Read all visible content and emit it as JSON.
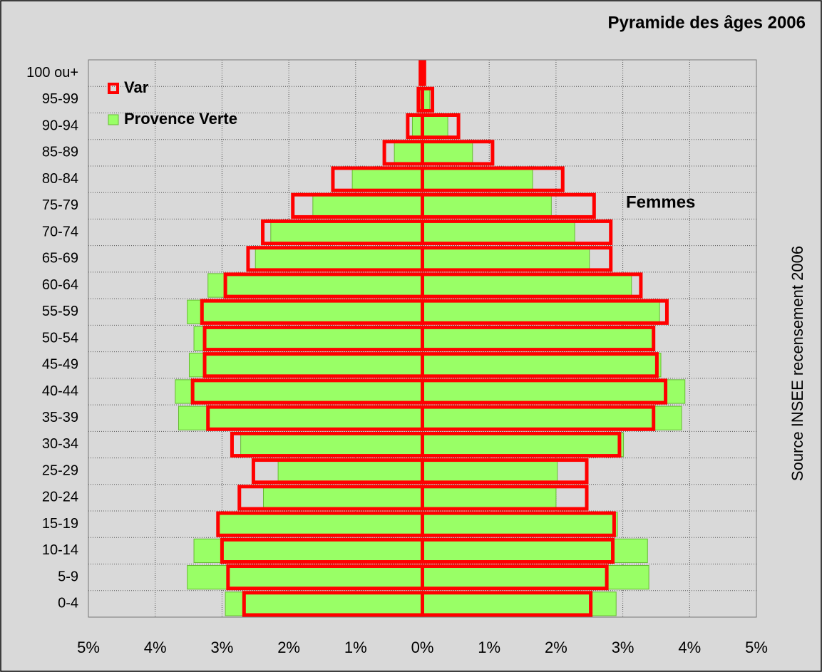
{
  "chart_data": {
    "type": "pyramid",
    "title": "Pyramide des âges 2006",
    "source": "Source INSEE recensement 2006",
    "annotation": "Femmes",
    "categories": [
      "100 ou+",
      "95-99",
      "90-94",
      "85-89",
      "80-84",
      "75-79",
      "70-74",
      "65-69",
      "60-64",
      "55-59",
      "50-54",
      "45-49",
      "40-44",
      "35-39",
      "30-34",
      "25-29",
      "20-24",
      "15-19",
      "10-14",
      "5-9",
      "0-4"
    ],
    "series": [
      {
        "name": "Provence Verte",
        "color": "#99ff66",
        "men": [
          -0.02,
          -0.06,
          -0.15,
          -0.42,
          -1.05,
          -1.64,
          -2.27,
          -2.5,
          -3.21,
          -3.52,
          -3.42,
          -3.49,
          -3.7,
          -3.65,
          -2.72,
          -2.16,
          -2.38,
          -3.05,
          -3.42,
          -3.52,
          -2.95
        ],
        "women": [
          0.02,
          0.11,
          0.38,
          0.75,
          1.65,
          1.93,
          2.28,
          2.5,
          3.13,
          3.55,
          3.45,
          3.57,
          3.93,
          3.88,
          3.01,
          2.02,
          2.0,
          2.92,
          3.37,
          3.39,
          2.9
        ]
      },
      {
        "name": "Var",
        "color": "#ff0000",
        "men": [
          -0.03,
          -0.06,
          -0.22,
          -0.57,
          -1.34,
          -1.94,
          -2.39,
          -2.61,
          -2.95,
          -3.3,
          -3.26,
          -3.26,
          -3.44,
          -3.21,
          -2.85,
          -2.53,
          -2.74,
          -3.06,
          -3.0,
          -2.91,
          -2.67
        ],
        "women": [
          0.03,
          0.15,
          0.54,
          1.05,
          2.1,
          2.57,
          2.82,
          2.82,
          3.27,
          3.66,
          3.46,
          3.51,
          3.64,
          3.46,
          2.95,
          2.46,
          2.46,
          2.87,
          2.85,
          2.76,
          2.52
        ]
      }
    ],
    "xlim": [
      -5,
      5
    ],
    "xticks": [
      {
        "value": -5,
        "label": "5%"
      },
      {
        "value": -4,
        "label": "4%"
      },
      {
        "value": -3,
        "label": "3%"
      },
      {
        "value": -2,
        "label": "2%"
      },
      {
        "value": -1,
        "label": "1%"
      },
      {
        "value": 0,
        "label": "0%"
      },
      {
        "value": 1,
        "label": "1%"
      },
      {
        "value": 2,
        "label": "2%"
      },
      {
        "value": 3,
        "label": "3%"
      },
      {
        "value": 4,
        "label": "4%"
      },
      {
        "value": 5,
        "label": "5%"
      }
    ],
    "grid": true
  }
}
